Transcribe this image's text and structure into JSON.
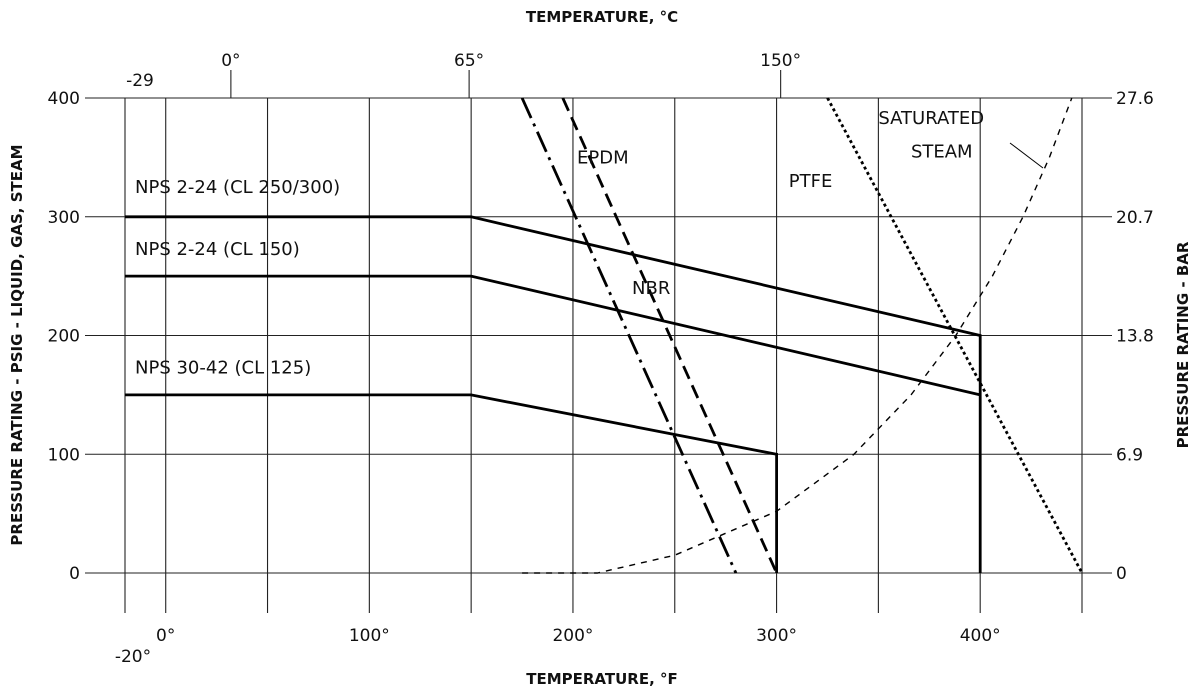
{
  "chart_data": {
    "type": "line",
    "title_top": "TEMPERATURE, °C",
    "title_bottom": "TEMPERATURE, °F",
    "ylabel_left": "PRESSURE RATING - PSIG - LIQUID, GAS, STEAM",
    "ylabel_right": "PRESSURE RATING - BAR",
    "xlim_f": [
      -20,
      450
    ],
    "ylim_psig": [
      0,
      400
    ],
    "grid": true,
    "x_ticks_f": [
      {
        "value": -20,
        "label": "-20°"
      },
      {
        "value": 0,
        "label": "0°"
      },
      {
        "value": 100,
        "label": "100°"
      },
      {
        "value": 200,
        "label": "200°"
      },
      {
        "value": 300,
        "label": "300°"
      },
      {
        "value": 400,
        "label": "400°"
      }
    ],
    "x_ticks_c": [
      {
        "value_f": -20,
        "label": "-29"
      },
      {
        "value_f": 32,
        "label": "0°"
      },
      {
        "value_f": 149,
        "label": "65°"
      },
      {
        "value_f": 302,
        "label": "150°"
      }
    ],
    "y_ticks_psig": [
      {
        "value": 0,
        "label": "0"
      },
      {
        "value": 100,
        "label": "100"
      },
      {
        "value": 200,
        "label": "200"
      },
      {
        "value": 300,
        "label": "300"
      },
      {
        "value": 400,
        "label": "400"
      }
    ],
    "y_ticks_bar": [
      {
        "value_psig": 0,
        "label": "0"
      },
      {
        "value_psig": 100,
        "label": "6.9"
      },
      {
        "value_psig": 200,
        "label": "13.8"
      },
      {
        "value_psig": 300,
        "label": "20.7"
      },
      {
        "value_psig": 400,
        "label": "27.6"
      }
    ],
    "series": [
      {
        "name": "NPS 2-24 (CL 250/300)",
        "style": "solid",
        "points": [
          [
            -20,
            300
          ],
          [
            150,
            300
          ],
          [
            400,
            200
          ],
          [
            400,
            0
          ]
        ]
      },
      {
        "name": "NPS 2-24 (CL 150)",
        "style": "solid",
        "points": [
          [
            -20,
            250
          ],
          [
            150,
            250
          ],
          [
            400,
            150
          ]
        ]
      },
      {
        "name": "NPS 30-42 (CL 125)",
        "style": "solid",
        "points": [
          [
            -20,
            150
          ],
          [
            150,
            150
          ],
          [
            300,
            100
          ],
          [
            300,
            0
          ]
        ]
      },
      {
        "name": "NBR",
        "style": "dashdot",
        "points": [
          [
            175,
            400
          ],
          [
            280,
            0
          ]
        ]
      },
      {
        "name": "EPDM",
        "style": "dashed",
        "points": [
          [
            195,
            400
          ],
          [
            300,
            0
          ]
        ]
      },
      {
        "name": "PTFE",
        "style": "dotted",
        "points": [
          [
            325,
            400
          ],
          [
            450,
            0
          ]
        ]
      },
      {
        "name": "SATURATED STEAM",
        "style": "fine-dashed",
        "points": [
          [
            175,
            0
          ],
          [
            212,
            0
          ],
          [
            250,
            15
          ],
          [
            300,
            52
          ],
          [
            338,
            100
          ],
          [
            366,
            150
          ],
          [
            388,
            200
          ],
          [
            406,
            250
          ],
          [
            421,
            300
          ],
          [
            434,
            350
          ],
          [
            445,
            400
          ]
        ]
      }
    ],
    "annotations": [
      {
        "text": "NPS 2-24 (CL 250/300)",
        "at": [
          -20,
          320
        ]
      },
      {
        "text": "NPS 2-24 (CL 150)",
        "at": [
          -20,
          268
        ]
      },
      {
        "text": "NPS 30-42 (CL 125)",
        "at": [
          -20,
          168
        ]
      },
      {
        "text": "EPDM",
        "at": [
          202,
          345
        ]
      },
      {
        "text": "NBR",
        "at": [
          229,
          235
        ]
      },
      {
        "text": "PTFE",
        "at": [
          306,
          325
        ]
      },
      {
        "text": "SATURATED",
        "at": [
          350,
          378
        ]
      },
      {
        "text": "STEAM",
        "at": [
          366,
          350
        ]
      }
    ]
  }
}
